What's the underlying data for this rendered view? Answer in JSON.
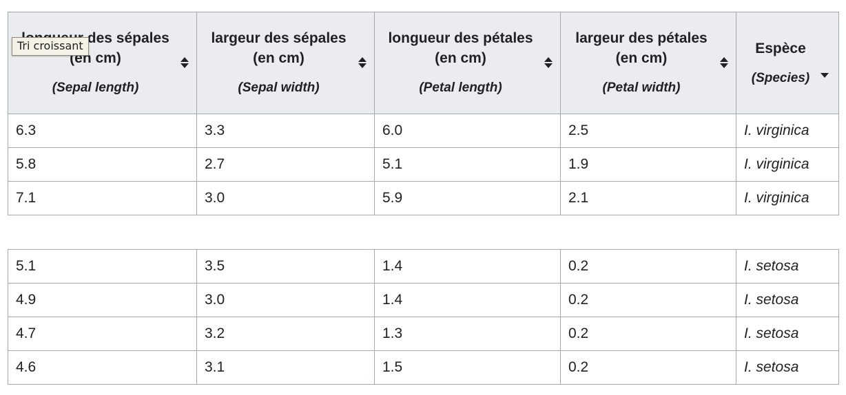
{
  "tooltip": "Tri croissant",
  "header": [
    {
      "main": "longueur des sépales (en cm)",
      "sub": "(Sepal length)",
      "sort": "both"
    },
    {
      "main": "largeur des sépales (en cm)",
      "sub": "(Sepal width)",
      "sort": "both"
    },
    {
      "main": "longueur des pétales (en cm)",
      "sub": "(Petal length)",
      "sort": "both"
    },
    {
      "main": "largeur des pétales (en cm)",
      "sub": "(Petal width)",
      "sort": "both"
    },
    {
      "main": "Espèce",
      "sub": "(Species)",
      "sort": "desc"
    }
  ],
  "rows_top": [
    [
      "6.3",
      "3.3",
      "6.0",
      "2.5",
      "I. virginica"
    ],
    [
      "5.8",
      "2.7",
      "5.1",
      "1.9",
      "I. virginica"
    ],
    [
      "7.1",
      "3.0",
      "5.9",
      "2.1",
      "I. virginica"
    ]
  ],
  "rows_bottom": [
    [
      "5.1",
      "3.5",
      "1.4",
      "0.2",
      "I. setosa"
    ],
    [
      "4.9",
      "3.0",
      "1.4",
      "0.2",
      "I. setosa"
    ],
    [
      "4.7",
      "3.2",
      "1.3",
      "0.2",
      "I. setosa"
    ],
    [
      "4.6",
      "3.1",
      "1.5",
      "0.2",
      "I. setosa"
    ]
  ]
}
